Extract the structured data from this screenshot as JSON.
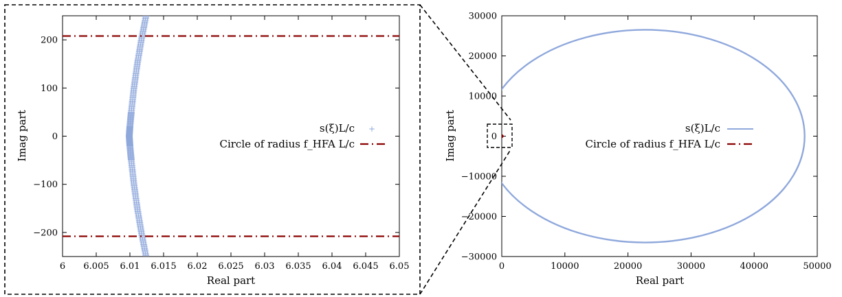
{
  "chart_data": [
    {
      "type": "scatter",
      "panel": "zoom",
      "xlabel": "Real part",
      "ylabel": "Imag part",
      "xlim": [
        6,
        6.05
      ],
      "ylim": [
        -250,
        250
      ],
      "xticks": [
        "6",
        "6.005",
        "6.01",
        "6.015",
        "6.02",
        "6.025",
        "6.03",
        "6.035",
        "6.04",
        "6.045",
        "6.05"
      ],
      "yticks": [
        "200",
        "100",
        "0",
        "−100",
        "−200"
      ],
      "ytick_values": [
        200,
        100,
        0,
        -100,
        -200
      ],
      "grid": false,
      "legend_position": "center-right",
      "series": [
        {
          "name": "s(ξ)L/c",
          "style": "points",
          "color": "#8fa8dc",
          "x": [
            6.0124,
            6.0117,
            6.0111,
            6.0106,
            6.0102,
            6.01,
            6.0099,
            6.01,
            6.0102,
            6.0106,
            6.0111,
            6.0117,
            6.0124
          ],
          "y": [
            250,
            200,
            150,
            100,
            50,
            20,
            0,
            -20,
            -50,
            -100,
            -150,
            -200,
            -250
          ]
        },
        {
          "name": "Circle of radius f_HFA L/c",
          "style": "dash-dot",
          "color": "#8b0000",
          "segments": [
            {
              "x": [
                6,
                6.05
              ],
              "y": [
                208,
                208
              ]
            },
            {
              "x": [
                6,
                6.05
              ],
              "y": [
                -208,
                -208
              ]
            }
          ]
        }
      ]
    },
    {
      "type": "line",
      "panel": "full",
      "xlabel": "Real part",
      "ylabel": "Imag part",
      "xlim": [
        0,
        50000
      ],
      "ylim": [
        -30000,
        30000
      ],
      "xticks": [
        "0",
        "10000",
        "20000",
        "30000",
        "40000",
        "50000"
      ],
      "xtick_values": [
        0,
        10000,
        20000,
        30000,
        40000,
        50000
      ],
      "yticks": [
        "30000",
        "20000",
        "10000",
        "0",
        "−10000",
        "−20000",
        "−30000"
      ],
      "ytick_values": [
        30000,
        20000,
        10000,
        0,
        -10000,
        -20000,
        -30000
      ],
      "grid": false,
      "legend_position": "center-right",
      "series": [
        {
          "name": "s(ξ)L/c",
          "style": "line",
          "color": "#8fa8dc",
          "ellipse": {
            "cx": 22700,
            "cy": 0,
            "rx": 25300,
            "ry": 26500
          }
        },
        {
          "name": "Circle of radius f_HFA L/c",
          "style": "dash-dot",
          "color": "#8b0000",
          "circle": {
            "cx": 0,
            "cy": 0,
            "r": 208
          }
        }
      ]
    }
  ]
}
